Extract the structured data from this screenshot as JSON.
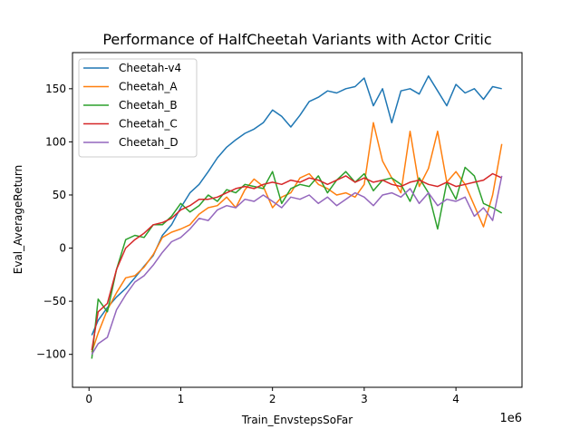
{
  "chart_data": {
    "type": "line",
    "title": "Performance of HalfCheetah Variants with Actor Critic",
    "xlabel": "Train_EnvstepsSoFar",
    "ylabel": "Eval_AverageReturn",
    "x_offset_label": "1e6",
    "xlim": [
      -0.18,
      4.72
    ],
    "ylim": [
      -131,
      184
    ],
    "xticks": [
      0,
      1,
      2,
      3,
      4
    ],
    "xtick_labels": [
      "0",
      "1",
      "2",
      "3",
      "4"
    ],
    "yticks": [
      -100,
      -50,
      0,
      50,
      100,
      150
    ],
    "ytick_labels": [
      "−100",
      "−50",
      "0",
      "50",
      "100",
      "150"
    ],
    "grid": false,
    "legend_position": "top-left",
    "series": [
      {
        "name": "Cheetah-v4",
        "color": "#1f77b4",
        "x": [
          0.03,
          0.1,
          0.2,
          0.3,
          0.4,
          0.5,
          0.6,
          0.7,
          0.8,
          0.9,
          1.0,
          1.1,
          1.2,
          1.3,
          1.4,
          1.5,
          1.6,
          1.7,
          1.8,
          1.9,
          2.0,
          2.1,
          2.2,
          2.3,
          2.4,
          2.5,
          2.6,
          2.7,
          2.8,
          2.9,
          3.0,
          3.1,
          3.2,
          3.3,
          3.4,
          3.5,
          3.6,
          3.7,
          3.8,
          3.9,
          4.0,
          4.1,
          4.2,
          4.3,
          4.4,
          4.5
        ],
        "y": [
          -82,
          -68,
          -56,
          -46,
          -38,
          -28,
          -17,
          -7,
          12,
          22,
          38,
          52,
          60,
          72,
          85,
          95,
          102,
          108,
          112,
          118,
          130,
          124,
          114,
          125,
          138,
          142,
          148,
          146,
          150,
          152,
          160,
          134,
          150,
          118,
          148,
          150,
          145,
          162,
          148,
          134,
          154,
          146,
          150,
          140,
          152,
          150
        ]
      },
      {
        "name": "Cheetah_A",
        "color": "#ff7f0e",
        "x": [
          0.03,
          0.1,
          0.2,
          0.3,
          0.4,
          0.5,
          0.6,
          0.7,
          0.8,
          0.9,
          1.0,
          1.1,
          1.2,
          1.3,
          1.4,
          1.5,
          1.6,
          1.7,
          1.8,
          1.9,
          2.0,
          2.1,
          2.2,
          2.3,
          2.4,
          2.5,
          2.6,
          2.7,
          2.8,
          2.9,
          3.0,
          3.1,
          3.2,
          3.3,
          3.4,
          3.5,
          3.6,
          3.7,
          3.8,
          3.9,
          4.0,
          4.1,
          4.2,
          4.3,
          4.4,
          4.5
        ],
        "y": [
          -98,
          -80,
          -58,
          -42,
          -28,
          -26,
          -18,
          -6,
          10,
          15,
          18,
          22,
          32,
          38,
          40,
          48,
          38,
          55,
          65,
          58,
          38,
          48,
          52,
          66,
          70,
          60,
          56,
          50,
          52,
          48,
          60,
          118,
          82,
          66,
          52,
          110,
          58,
          75,
          110,
          62,
          72,
          60,
          40,
          20,
          50,
          98
        ]
      },
      {
        "name": "Cheetah_B",
        "color": "#2ca02c",
        "x": [
          0.03,
          0.1,
          0.2,
          0.3,
          0.4,
          0.5,
          0.6,
          0.7,
          0.8,
          0.9,
          1.0,
          1.1,
          1.2,
          1.3,
          1.4,
          1.5,
          1.6,
          1.7,
          1.8,
          1.9,
          2.0,
          2.1,
          2.2,
          2.3,
          2.4,
          2.5,
          2.6,
          2.7,
          2.8,
          2.9,
          3.0,
          3.1,
          3.2,
          3.3,
          3.4,
          3.5,
          3.6,
          3.7,
          3.8,
          3.9,
          4.0,
          4.1,
          4.2,
          4.3,
          4.4,
          4.5
        ],
        "y": [
          -104,
          -48,
          -60,
          -20,
          8,
          12,
          10,
          22,
          22,
          30,
          42,
          34,
          40,
          50,
          44,
          55,
          52,
          60,
          58,
          56,
          72,
          42,
          56,
          60,
          58,
          68,
          52,
          64,
          72,
          62,
          70,
          54,
          64,
          66,
          60,
          44,
          66,
          52,
          18,
          62,
          46,
          76,
          68,
          42,
          38,
          33
        ]
      },
      {
        "name": "Cheetah_C",
        "color": "#d62728",
        "x": [
          0.03,
          0.1,
          0.2,
          0.3,
          0.4,
          0.5,
          0.6,
          0.7,
          0.8,
          0.9,
          1.0,
          1.1,
          1.2,
          1.3,
          1.4,
          1.5,
          1.6,
          1.7,
          1.8,
          1.9,
          2.0,
          2.1,
          2.2,
          2.3,
          2.4,
          2.5,
          2.6,
          2.7,
          2.8,
          2.9,
          3.0,
          3.1,
          3.2,
          3.3,
          3.4,
          3.5,
          3.6,
          3.7,
          3.8,
          3.9,
          4.0,
          4.1,
          4.2,
          4.3,
          4.4,
          4.5
        ],
        "y": [
          -96,
          -60,
          -52,
          -20,
          0,
          8,
          14,
          22,
          24,
          28,
          36,
          40,
          46,
          46,
          48,
          52,
          56,
          58,
          56,
          60,
          62,
          60,
          64,
          62,
          66,
          64,
          60,
          64,
          68,
          62,
          66,
          62,
          64,
          60,
          58,
          62,
          64,
          60,
          58,
          62,
          58,
          60,
          62,
          64,
          70,
          66
        ]
      },
      {
        "name": "Cheetah_D",
        "color": "#9467bd",
        "x": [
          0.03,
          0.1,
          0.2,
          0.3,
          0.4,
          0.5,
          0.6,
          0.7,
          0.8,
          0.9,
          1.0,
          1.1,
          1.2,
          1.3,
          1.4,
          1.5,
          1.6,
          1.7,
          1.8,
          1.9,
          2.0,
          2.1,
          2.2,
          2.3,
          2.4,
          2.5,
          2.6,
          2.7,
          2.8,
          2.9,
          3.0,
          3.1,
          3.2,
          3.3,
          3.4,
          3.5,
          3.6,
          3.7,
          3.8,
          3.9,
          4.0,
          4.1,
          4.2,
          4.3,
          4.4,
          4.5
        ],
        "y": [
          -100,
          -90,
          -84,
          -58,
          -44,
          -32,
          -26,
          -16,
          -4,
          6,
          10,
          18,
          28,
          26,
          36,
          40,
          38,
          46,
          44,
          50,
          44,
          38,
          48,
          46,
          50,
          42,
          48,
          40,
          46,
          52,
          48,
          40,
          50,
          52,
          48,
          56,
          42,
          52,
          40,
          46,
          44,
          48,
          30,
          38,
          26,
          68
        ]
      }
    ]
  }
}
